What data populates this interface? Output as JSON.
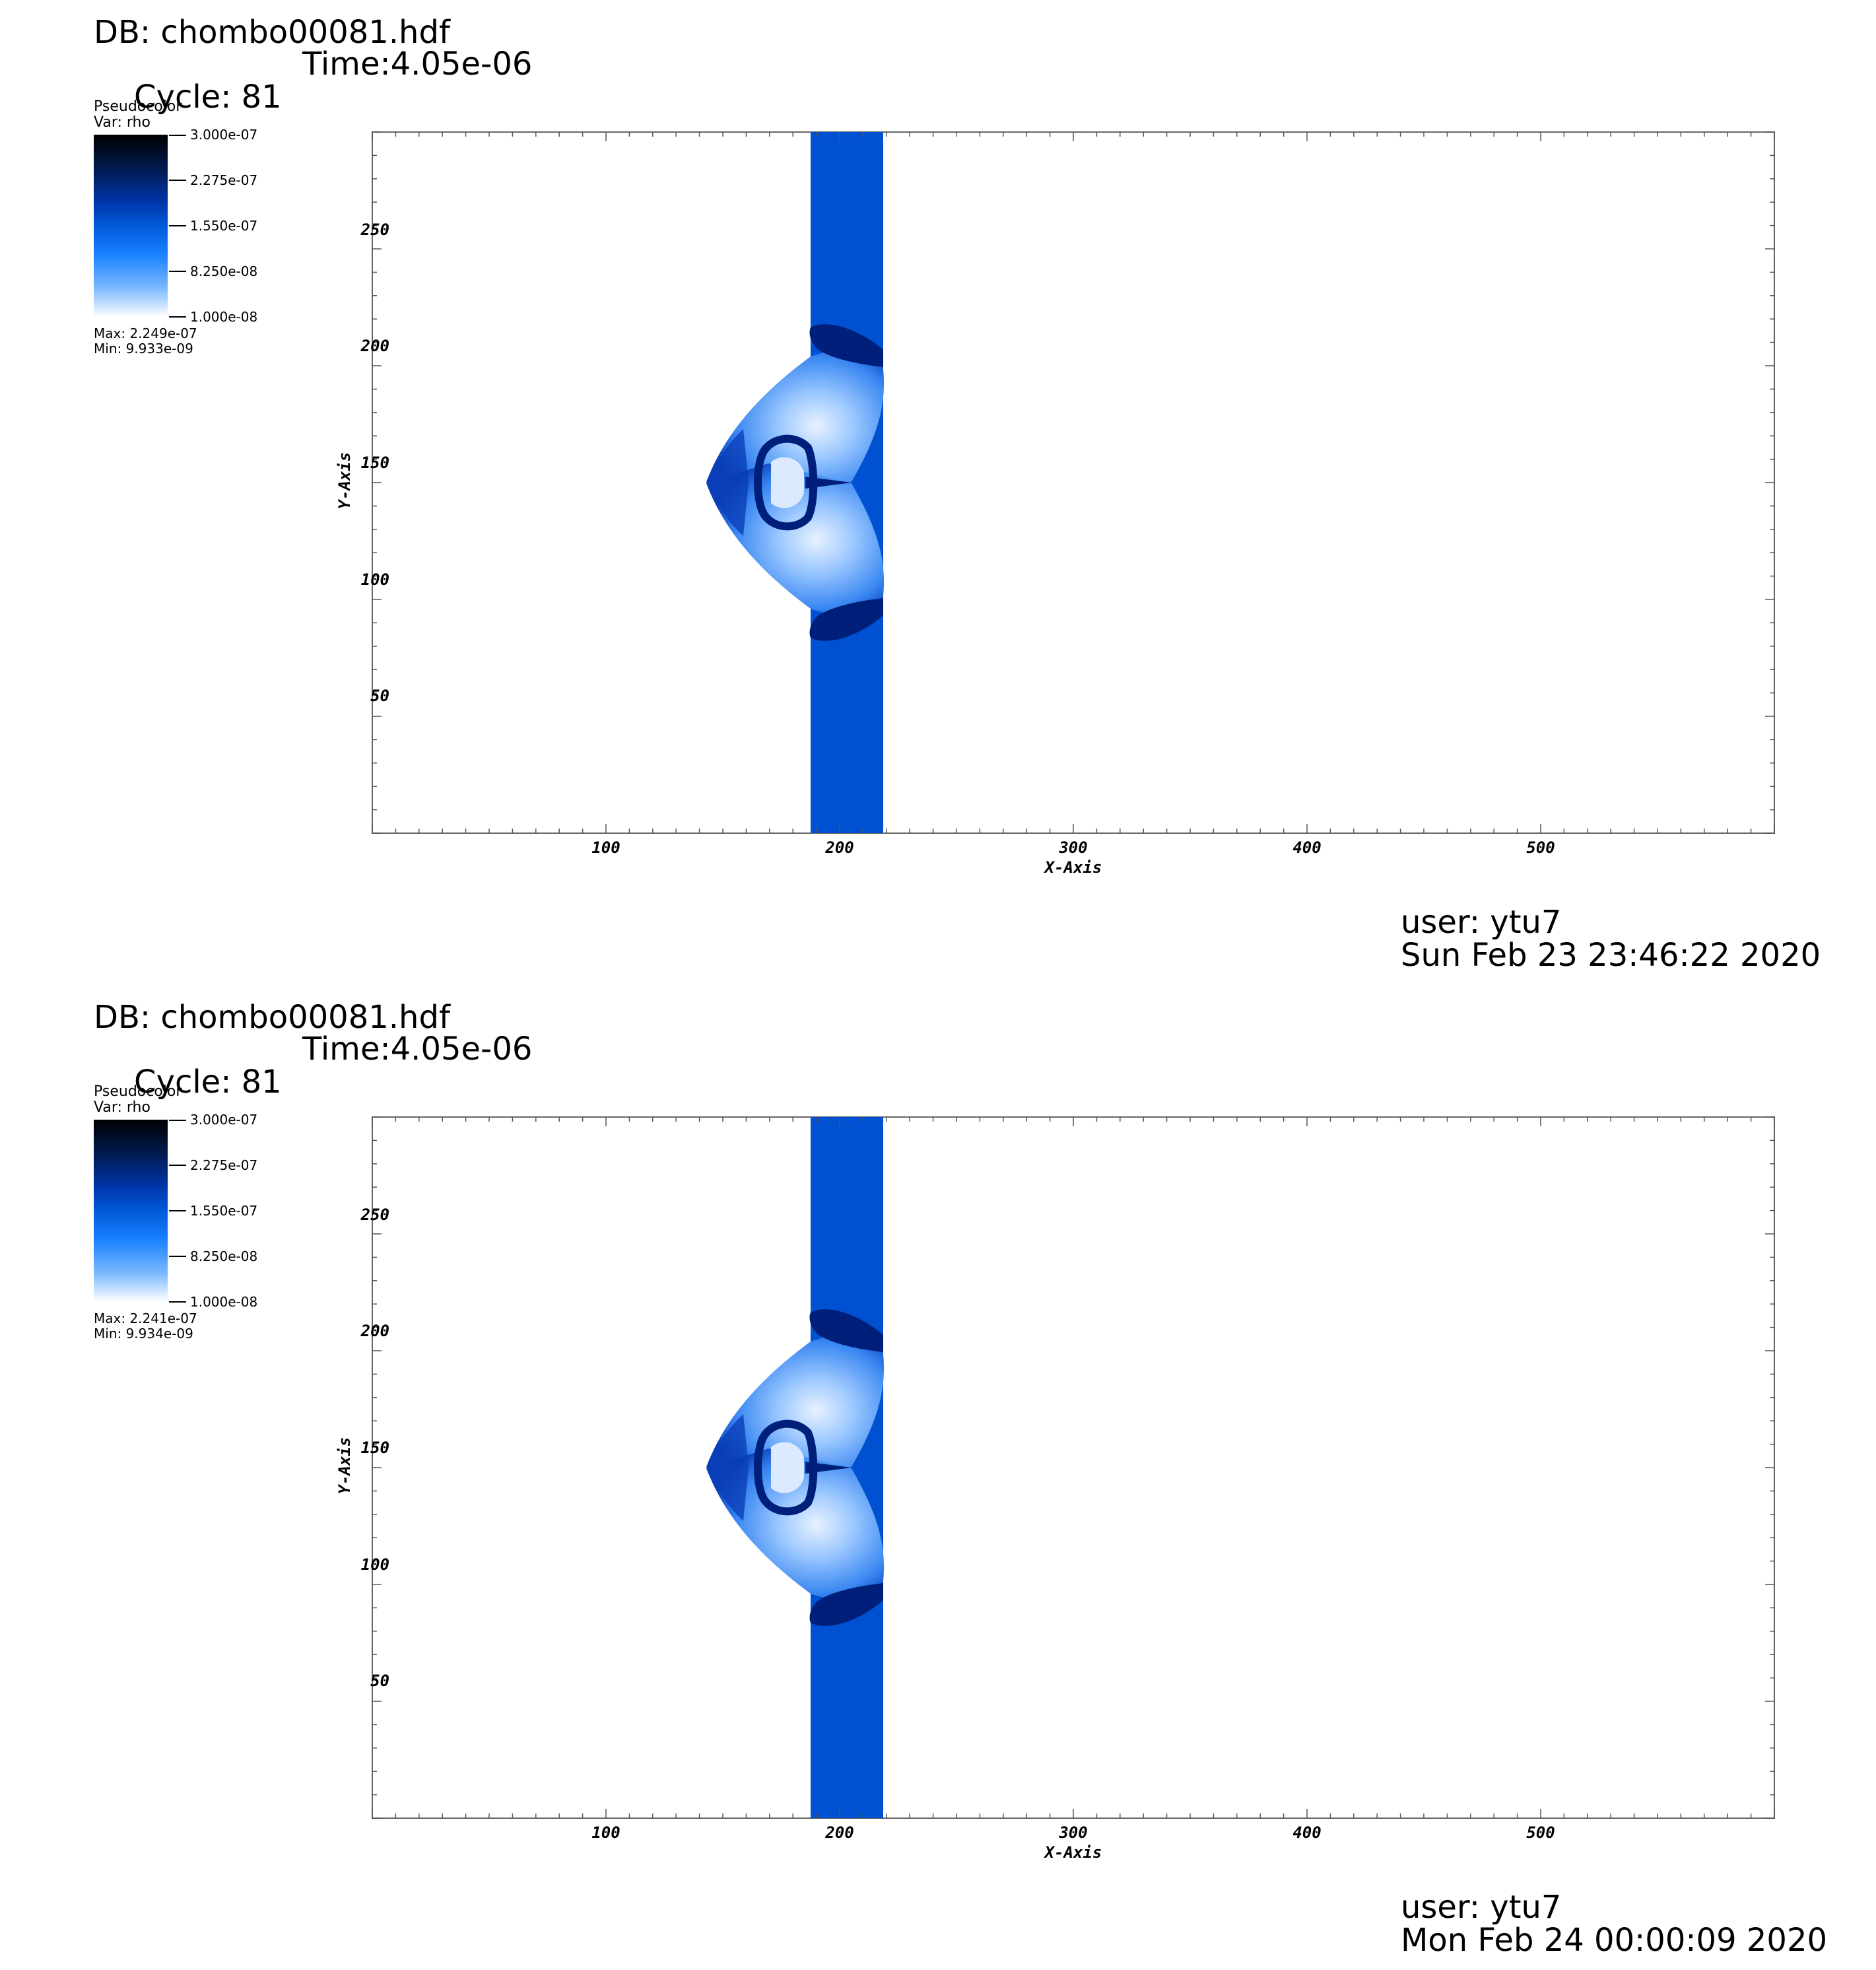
{
  "panels": [
    {
      "db": "DB: chombo00081.hdf",
      "cycle": "Cycle: 81",
      "time": "Time:4.05e-06",
      "legend": {
        "type": "Pseudocolor",
        "var": "Var: rho",
        "ticks": [
          "3.000e-07",
          "2.275e-07",
          "1.550e-07",
          "8.250e-08",
          "1.000e-08"
        ],
        "max": "Max:  2.249e-07",
        "min": "Min:  9.933e-09"
      },
      "axes": {
        "x_title": "X-Axis",
        "y_title": "Y-Axis",
        "x_ticks": [
          "100",
          "200",
          "300",
          "400",
          "500"
        ],
        "y_ticks": [
          "50",
          "100",
          "150",
          "200",
          "250"
        ]
      },
      "user": "user: ytu7",
      "date": "Sun Feb 23 23:46:22 2020"
    },
    {
      "db": "DB: chombo00081.hdf",
      "cycle": "Cycle: 81",
      "time": "Time:4.05e-06",
      "legend": {
        "type": "Pseudocolor",
        "var": "Var: rho",
        "ticks": [
          "3.000e-07",
          "2.275e-07",
          "1.550e-07",
          "8.250e-08",
          "1.000e-08"
        ],
        "max": "Max:  2.241e-07",
        "min": "Min:  9.934e-09"
      },
      "axes": {
        "x_title": "X-Axis",
        "y_title": "Y-Axis",
        "x_ticks": [
          "100",
          "200",
          "300",
          "400",
          "500"
        ],
        "y_ticks": [
          "50",
          "100",
          "150",
          "200",
          "250"
        ]
      },
      "user": "user: ytu7",
      "date": "Mon Feb 24 00:00:09 2020"
    }
  ],
  "colors": {
    "slab": "#0050d2",
    "bubble_light": "#9cc8ff",
    "bubble_mid": "#2f80f0",
    "bubble_dark": "#001f7a"
  }
}
